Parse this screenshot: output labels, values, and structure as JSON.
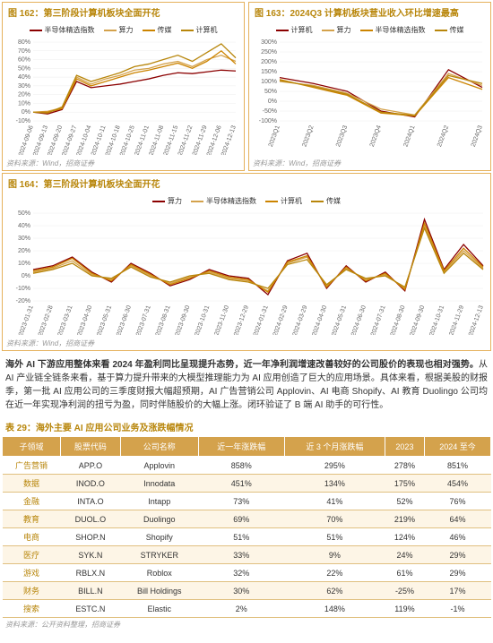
{
  "colors": {
    "border": "#e5b15c",
    "title": "#b8860b",
    "th_bg": "#d4a24c",
    "row_alt": "#fdf5e6",
    "grid": "#eeeeee",
    "series": {
      "semi": "#8b0000",
      "compute": "#d4a24c",
      "media": "#cc8400",
      "computer": "#b8860b"
    }
  },
  "chart162": {
    "title": "图 162：第三阶段计算机板块全面开花",
    "legend": [
      {
        "label": "半导体精选指数",
        "color": "#8b0000"
      },
      {
        "label": "算力",
        "color": "#d4a24c"
      },
      {
        "label": "传媒",
        "color": "#cc8400"
      },
      {
        "label": "计算机",
        "color": "#b8860b"
      }
    ],
    "ylim": [
      -10,
      80
    ],
    "ytick_step": 10,
    "x_labels": [
      "2024-09-06",
      "2024-09-13",
      "2024-09-20",
      "2024-09-27",
      "2024-10-04",
      "2024-10-11",
      "2024-10-18",
      "2024-10-25",
      "2024-11-01",
      "2024-11-08",
      "2024-11-15",
      "2024-11-22",
      "2024-11-29",
      "2024-12-06",
      "2024-12-13"
    ],
    "series": [
      {
        "color": "#8b0000",
        "values": [
          0,
          -2,
          3,
          35,
          28,
          30,
          32,
          35,
          38,
          42,
          45,
          44,
          46,
          48,
          47
        ]
      },
      {
        "color": "#d4a24c",
        "values": [
          0,
          1,
          5,
          40,
          32,
          38,
          42,
          48,
          50,
          55,
          58,
          52,
          60,
          65,
          58
        ]
      },
      {
        "color": "#cc8400",
        "values": [
          0,
          0,
          4,
          38,
          30,
          35,
          40,
          45,
          48,
          52,
          56,
          50,
          58,
          70,
          55
        ]
      },
      {
        "color": "#b8860b",
        "values": [
          0,
          -1,
          6,
          42,
          35,
          40,
          45,
          52,
          55,
          60,
          65,
          58,
          68,
          78,
          62
        ]
      }
    ],
    "source": "资料来源：Wind，招商证券"
  },
  "chart163": {
    "title": "图 163：2024Q3 计算机板块营业收入环比增速最高",
    "legend": [
      {
        "label": "计算机",
        "color": "#8b0000"
      },
      {
        "label": "算力",
        "color": "#d4a24c"
      },
      {
        "label": "半导体精选指数",
        "color": "#cc8400"
      },
      {
        "label": "传媒",
        "color": "#b8860b"
      }
    ],
    "ylim": [
      -100,
      300
    ],
    "ytick_step": 50,
    "x_labels": [
      "2023Q1",
      "2023Q2",
      "2023Q3",
      "2023Q4",
      "2024Q1",
      "2024Q2",
      "2024Q3"
    ],
    "series": [
      {
        "color": "#8b0000",
        "values": [
          120,
          90,
          50,
          -50,
          -80,
          160,
          70
        ]
      },
      {
        "color": "#d4a24c",
        "values": [
          100,
          80,
          40,
          -40,
          -70,
          140,
          80
        ]
      },
      {
        "color": "#cc8400",
        "values": [
          110,
          70,
          30,
          -60,
          -75,
          120,
          60
        ]
      },
      {
        "color": "#b8860b",
        "values": [
          105,
          75,
          35,
          -55,
          -72,
          130,
          90
        ]
      }
    ],
    "source": "资料来源：Wind，招商证券"
  },
  "chart164": {
    "title": "图 164：第三阶段计算机板块全面开花",
    "legend": [
      {
        "label": "算力",
        "color": "#8b0000"
      },
      {
        "label": "半导体精选指数",
        "color": "#d4a24c"
      },
      {
        "label": "计算机",
        "color": "#cc8400"
      },
      {
        "label": "传媒",
        "color": "#b8860b"
      }
    ],
    "ylim": [
      -20,
      50
    ],
    "ytick_step": 10,
    "x_labels": [
      "2023-01-31",
      "2023-02-28",
      "2023-03-31",
      "2023-04-30",
      "2023-05-31",
      "2023-06-30",
      "2023-07-31",
      "2023-08-31",
      "2023-09-30",
      "2023-10-31",
      "2023-11-30",
      "2023-12-29",
      "2024-01-31",
      "2024-02-29",
      "2024-03-29",
      "2024-04-30",
      "2024-05-31",
      "2024-06-30",
      "2024-07-31",
      "2024-08-30",
      "2024-09-30",
      "2024-10-31",
      "2024-11-29",
      "2024-12-13"
    ],
    "series": [
      {
        "color": "#8b0000",
        "values": [
          5,
          8,
          15,
          3,
          -5,
          10,
          2,
          -8,
          -3,
          5,
          0,
          -2,
          -15,
          12,
          18,
          -10,
          8,
          -5,
          3,
          -12,
          45,
          5,
          25,
          8
        ]
      },
      {
        "color": "#d4a24c",
        "values": [
          3,
          6,
          12,
          1,
          -3,
          8,
          0,
          -6,
          -1,
          3,
          -2,
          -4,
          -12,
          10,
          15,
          -8,
          6,
          -3,
          1,
          -10,
          40,
          3,
          20,
          6
        ]
      },
      {
        "color": "#cc8400",
        "values": [
          4,
          7,
          14,
          2,
          -4,
          9,
          1,
          -7,
          -2,
          4,
          -1,
          -3,
          -13,
          11,
          16,
          -9,
          7,
          -4,
          2,
          -11,
          42,
          4,
          22,
          7
        ]
      },
      {
        "color": "#b8860b",
        "values": [
          2,
          5,
          10,
          0,
          -2,
          7,
          -1,
          -5,
          0,
          2,
          -3,
          -5,
          -10,
          9,
          13,
          -7,
          5,
          -2,
          0,
          -9,
          38,
          2,
          18,
          5
        ]
      }
    ],
    "source": "资料来源：Wind，招商证券"
  },
  "paragraph": {
    "lead": "海外 AI 下游应用整体来看 2024 年盈利同比呈现提升态势，近一年净利润增速改善较好的公司股价的表现也相对强势。",
    "body": "从 AI 产业链全链条来看，基于算力提升带来的大模型推理能力为 AI 应用创造了巨大的应用场景。具体来看，根据美股的财报季，第一批 AI 应用公司的三季度财报大幅超预期，AI 广告营销公司 Applovin、AI 电商 Shopify、AI 教育 Duolingo 公司均在近一年实现净利润的扭亏为盈，同时伴随股价的大幅上涨。闭环验证了 B 端 AI 助手的可行性。"
  },
  "table29": {
    "title": "表 29：海外主要 AI 应用公司业务及涨跌幅情况",
    "columns": [
      "子领域",
      "股票代码",
      "公司名称",
      "近一年涨跌幅",
      "近 3 个月涨跌幅",
      "2023",
      "2024 至今"
    ],
    "rows": [
      [
        "广告营销",
        "APP.O",
        "Applovin",
        "858%",
        "295%",
        "278%",
        "851%"
      ],
      [
        "数据",
        "INOD.O",
        "Innodata",
        "451%",
        "134%",
        "175%",
        "454%"
      ],
      [
        "金融",
        "INTA.O",
        "Intapp",
        "73%",
        "41%",
        "52%",
        "76%"
      ],
      [
        "教育",
        "DUOL.O",
        "Duolingo",
        "69%",
        "70%",
        "219%",
        "64%"
      ],
      [
        "电商",
        "SHOP.N",
        "Shopify",
        "51%",
        "51%",
        "124%",
        "46%"
      ],
      [
        "医疗",
        "SYK.N",
        "STRYKER",
        "33%",
        "9%",
        "24%",
        "29%"
      ],
      [
        "游戏",
        "RBLX.N",
        "Roblox",
        "32%",
        "22%",
        "61%",
        "29%"
      ],
      [
        "财务",
        "BILL.N",
        "Bill Holdings",
        "30%",
        "62%",
        "-25%",
        "17%"
      ],
      [
        "搜索",
        "ESTC.N",
        "Elastic",
        "2%",
        "148%",
        "119%",
        "-1%"
      ]
    ],
    "source": "资料来源：公开资料整理，招商证券"
  }
}
